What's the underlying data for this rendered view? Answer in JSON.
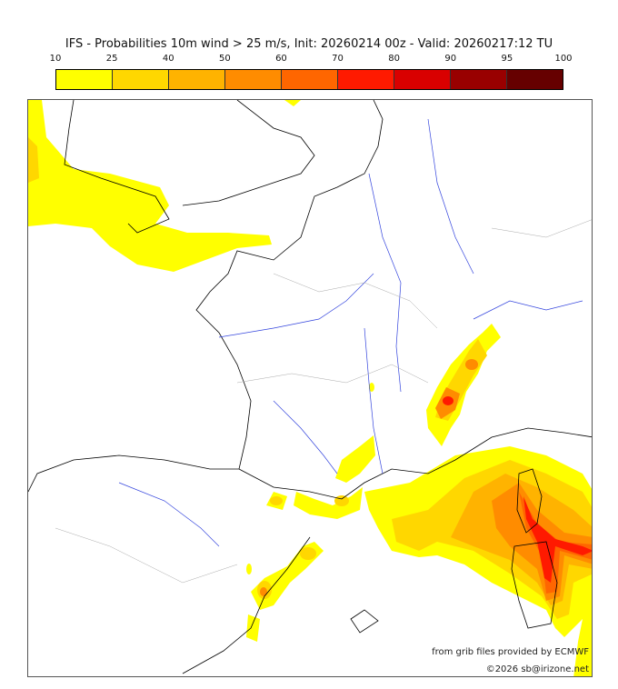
{
  "title": "IFS - Probabilities 10m wind > 25 m/s, Init: 20260214 00z - Valid: 20260217:12 TU",
  "colorbar": {
    "ticks": [
      "10",
      "25",
      "40",
      "50",
      "60",
      "70",
      "80",
      "90",
      "95",
      "100"
    ],
    "colors": [
      "#ffff00",
      "#ffd700",
      "#ffb300",
      "#ff8c00",
      "#ff6600",
      "#ff1a00",
      "#d90000",
      "#990000",
      "#660000"
    ]
  },
  "credits": {
    "source": "from grib files provided by ECMWF",
    "copyright": "©2026 sb@irizone.net"
  }
}
